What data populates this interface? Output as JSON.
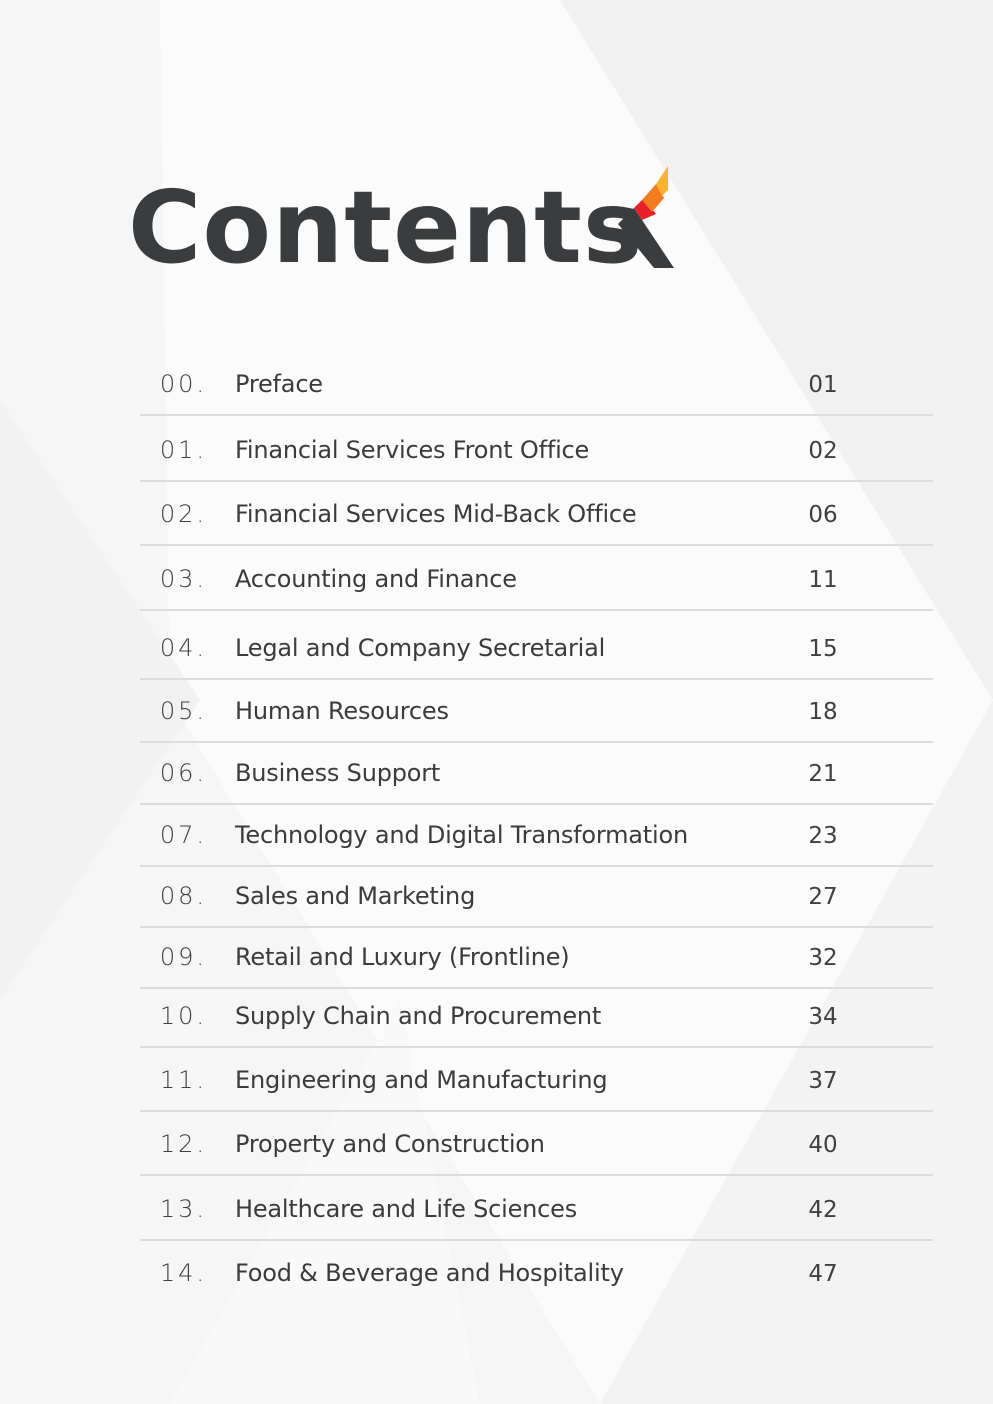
{
  "page": {
    "title": "Contents",
    "logo_icon": "chevron-flame-logo-icon",
    "colors": {
      "background": "#f6f6f6",
      "text": "#3b3c3e",
      "divider": "#dcdcdc",
      "logo_dark": "#3b3c3e",
      "logo_red": "#e8202a",
      "logo_orange": "#f47c20",
      "logo_yellow": "#f9b234"
    }
  },
  "toc": {
    "items": [
      {
        "number": "00.",
        "label": "Preface",
        "page": "01"
      },
      {
        "number": "01.",
        "label": "Financial Services Front Office",
        "page": "02"
      },
      {
        "number": "02.",
        "label": "Financial Services Mid-Back Office",
        "page": "06"
      },
      {
        "number": "03.",
        "label": "Accounting and Finance",
        "page": "11"
      },
      {
        "number": "04.",
        "label": "Legal and Company Secretarial",
        "page": "15"
      },
      {
        "number": "05.",
        "label": "Human Resources",
        "page": "18"
      },
      {
        "number": "06.",
        "label": "Business Support",
        "page": "21"
      },
      {
        "number": "07.",
        "label": "Technology and Digital Transformation",
        "page": "23"
      },
      {
        "number": "08.",
        "label": "Sales and Marketing",
        "page": "27"
      },
      {
        "number": "09.",
        "label": "Retail and Luxury (Frontline)",
        "page": "32"
      },
      {
        "number": "10.",
        "label": "Supply Chain and Procurement",
        "page": "34"
      },
      {
        "number": "11.",
        "label": "Engineering and Manufacturing",
        "page": "37"
      },
      {
        "number": "12.",
        "label": "Property and Construction",
        "page": "40"
      },
      {
        "number": "13.",
        "label": "Healthcare and Life Sciences",
        "page": "42"
      },
      {
        "number": "14.",
        "label": "Food & Beverage and Hospitality",
        "page": "47"
      }
    ]
  }
}
